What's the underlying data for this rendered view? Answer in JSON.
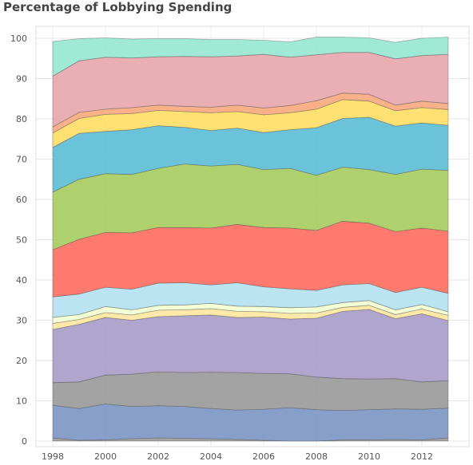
{
  "chart_data": {
    "type": "area",
    "stacked": true,
    "title": "Percentage of Lobbying Spending",
    "xlabel": "",
    "ylabel": "",
    "x": [
      1998,
      1999,
      2000,
      2001,
      2002,
      2003,
      2004,
      2005,
      2006,
      2007,
      2008,
      2009,
      2010,
      2011,
      2012,
      2013
    ],
    "xticks": [
      "1998",
      "2000",
      "2002",
      "2004",
      "2006",
      "2008",
      "2010",
      "2012"
    ],
    "yticks": [
      "0",
      "10",
      "20",
      "30",
      "40",
      "50",
      "60",
      "70",
      "80",
      "90",
      "100"
    ],
    "ylim": [
      0,
      100
    ],
    "xlim": [
      1998,
      2013.9
    ],
    "grid": true,
    "legend": "none",
    "series": [
      {
        "color": "#999999",
        "values": [
          0.8,
          0.2,
          0.3,
          0.6,
          0.8,
          0.7,
          0.6,
          0.4,
          0.2,
          0.0,
          0.0,
          0.3,
          0.3,
          0.4,
          0.3,
          0.8
        ]
      },
      {
        "color": "#7b95c3",
        "values": [
          8.1,
          7.9,
          8.9,
          8.0,
          8.0,
          7.9,
          7.5,
          7.3,
          7.7,
          8.3,
          7.8,
          7.3,
          7.5,
          7.6,
          7.6,
          7.4
        ]
      },
      {
        "color": "#999999",
        "values": [
          5.6,
          6.6,
          7.2,
          8.0,
          8.4,
          8.4,
          9.0,
          9.3,
          8.9,
          8.4,
          8.1,
          7.9,
          7.6,
          7.5,
          6.8,
          6.8
        ]
      },
      {
        "color": "#a79bc8",
        "values": [
          13.2,
          14.3,
          14.3,
          13.4,
          13.7,
          14.1,
          14.2,
          13.7,
          14.0,
          13.6,
          14.6,
          16.7,
          17.3,
          14.9,
          16.9,
          14.9
        ]
      },
      {
        "color": "#ffe7a0",
        "values": [
          1.5,
          1.2,
          1.2,
          1.3,
          1.6,
          1.5,
          1.6,
          1.5,
          1.3,
          1.4,
          1.3,
          1.0,
          1.0,
          1.0,
          1.2,
          1.3
        ]
      },
      {
        "color": "#f2ffcf",
        "values": [
          1.5,
          1.2,
          1.5,
          1.3,
          1.2,
          1.2,
          1.3,
          1.3,
          1.3,
          1.4,
          1.5,
          1.2,
          1.2,
          1.2,
          1.1,
          0.9
        ]
      },
      {
        "color": "#b3e1ef",
        "values": [
          5.1,
          5.1,
          4.8,
          5.1,
          5.5,
          5.5,
          4.6,
          5.8,
          4.9,
          4.7,
          4.1,
          4.4,
          4.2,
          4.3,
          4.3,
          4.6
        ]
      },
      {
        "color": "#ff6b5e",
        "values": [
          11.7,
          13.6,
          13.6,
          14.0,
          13.8,
          13.7,
          14.1,
          14.5,
          14.7,
          15.1,
          14.9,
          15.8,
          15.0,
          15.1,
          14.7,
          15.4
        ]
      },
      {
        "color": "#a6cc5d",
        "values": [
          14.3,
          14.9,
          14.6,
          14.5,
          14.7,
          15.8,
          15.4,
          14.9,
          14.4,
          14.8,
          13.7,
          13.4,
          13.3,
          14.2,
          14.6,
          15.1
        ]
      },
      {
        "color": "#5bbcd6",
        "values": [
          11.1,
          11.4,
          10.5,
          11.1,
          10.6,
          9.1,
          8.8,
          9.0,
          9.2,
          9.6,
          11.8,
          12.1,
          13.0,
          12.0,
          11.5,
          11.2
        ]
      },
      {
        "color": "#ffdd63",
        "values": [
          3.6,
          3.7,
          4.2,
          4.0,
          3.8,
          3.9,
          4.4,
          4.1,
          4.4,
          4.2,
          4.6,
          4.7,
          4.0,
          3.8,
          3.8,
          3.9
        ]
      },
      {
        "color": "#f7a97b",
        "values": [
          1.5,
          1.5,
          1.3,
          1.5,
          1.3,
          1.3,
          1.4,
          1.6,
          1.7,
          1.8,
          2.1,
          1.6,
          1.7,
          1.4,
          1.6,
          1.5
        ]
      },
      {
        "color": "#e8a6ad",
        "values": [
          12.6,
          12.8,
          12.9,
          12.3,
          12.0,
          12.4,
          12.5,
          12.2,
          13.3,
          12.0,
          11.4,
          10.1,
          10.4,
          11.5,
          11.3,
          12.2
        ]
      },
      {
        "color": "#96e7cf",
        "values": [
          8.6,
          5.5,
          4.8,
          4.7,
          4.5,
          4.4,
          4.3,
          4.1,
          3.5,
          3.8,
          4.4,
          3.8,
          3.6,
          4.1,
          4.3,
          4.3
        ]
      }
    ]
  }
}
